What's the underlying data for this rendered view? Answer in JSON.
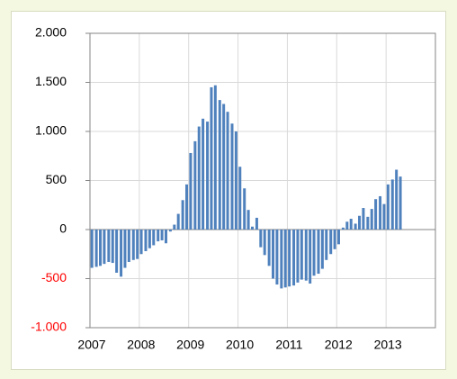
{
  "chart_data": {
    "type": "bar",
    "x": [
      2007.04,
      2007.13,
      2007.21,
      2007.29,
      2007.38,
      2007.46,
      2007.54,
      2007.63,
      2007.71,
      2007.79,
      2007.88,
      2007.96,
      2008.04,
      2008.13,
      2008.21,
      2008.29,
      2008.38,
      2008.46,
      2008.54,
      2008.63,
      2008.71,
      2008.79,
      2008.88,
      2008.96,
      2009.04,
      2009.13,
      2009.21,
      2009.29,
      2009.38,
      2009.46,
      2009.54,
      2009.63,
      2009.71,
      2009.79,
      2009.88,
      2009.96,
      2010.04,
      2010.13,
      2010.21,
      2010.29,
      2010.38,
      2010.46,
      2010.54,
      2010.63,
      2010.71,
      2010.79,
      2010.88,
      2010.96,
      2011.04,
      2011.13,
      2011.21,
      2011.29,
      2011.38,
      2011.46,
      2011.54,
      2011.63,
      2011.71,
      2011.79,
      2011.88,
      2011.96,
      2012.04,
      2012.13,
      2012.21,
      2012.29,
      2012.38,
      2012.46,
      2012.54,
      2012.63,
      2012.71,
      2012.79,
      2012.88,
      2012.96,
      2013.04,
      2013.13,
      2013.21,
      2013.29
    ],
    "values": [
      -390,
      -380,
      -370,
      -350,
      -330,
      -340,
      -440,
      -480,
      -390,
      -330,
      -310,
      -300,
      -250,
      -220,
      -190,
      -160,
      -120,
      -110,
      -140,
      -20,
      50,
      160,
      300,
      460,
      780,
      900,
      1050,
      1130,
      1100,
      1450,
      1470,
      1320,
      1280,
      1200,
      1080,
      1000,
      640,
      420,
      200,
      30,
      120,
      -180,
      -260,
      -370,
      -500,
      -560,
      -600,
      -590,
      -580,
      -570,
      -540,
      -510,
      -520,
      -550,
      -470,
      -450,
      -400,
      -310,
      -250,
      -200,
      -150,
      20,
      80,
      110,
      60,
      140,
      220,
      130,
      210,
      310,
      340,
      260,
      460,
      510,
      610,
      540
    ],
    "color": "#4f81bd",
    "xlim": [
      2007,
      2014
    ],
    "xticks": [
      2007,
      2008,
      2009,
      2010,
      2011,
      2012,
      2013
    ],
    "ylim": [
      -1000,
      2000
    ],
    "yticks": [
      {
        "value": -1000,
        "label": "-1.000"
      },
      -500,
      0,
      500,
      {
        "value": 1000,
        "label": "1.000"
      },
      {
        "value": 1500,
        "label": "1.500"
      },
      {
        "value": 2000,
        "label": "2.000"
      }
    ],
    "negative_tick_color": "#ff0000",
    "grid": true
  }
}
